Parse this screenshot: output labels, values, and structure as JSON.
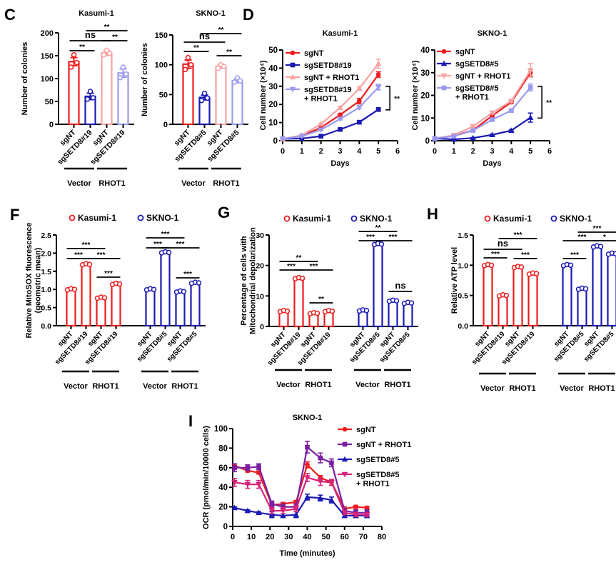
{
  "panel_labels": {
    "C": "C",
    "D": "D",
    "F": "F",
    "G": "G",
    "H": "H",
    "I": "I"
  },
  "colors": {
    "red": "#ee1c1c",
    "blue": "#1a1ab4",
    "pink": "#f7a3a3",
    "lavender": "#9a9af0",
    "purple": "#7b1fa2",
    "magenta": "#d6237a"
  },
  "chart_data": [
    {
      "id": "C1",
      "type": "bar",
      "title": "Kasumi-1",
      "ylabel": "Number of colonies",
      "ylim": [
        0,
        200
      ],
      "yticks": [
        0,
        50,
        100,
        150,
        200
      ],
      "categories": [
        "sgNT",
        "sgSETD8#19",
        "sgNT",
        "sgSETD8#19"
      ],
      "values": [
        137,
        61,
        156,
        112
      ],
      "errors": [
        9,
        7,
        5,
        9
      ],
      "points": [
        [
          152,
          125,
          135
        ],
        [
          72,
          55,
          58
        ],
        [
          162,
          152,
          155
        ],
        [
          125,
          102,
          110
        ]
      ],
      "bar_colors": [
        "red",
        "blue",
        "pink",
        "lavender"
      ],
      "groups": [
        {
          "label": "Vector",
          "span": [
            0,
            1
          ]
        },
        {
          "label": "RHOT1",
          "span": [
            2,
            3
          ]
        }
      ],
      "sig": [
        {
          "a": 0,
          "b": 1,
          "label": "**"
        },
        {
          "a": 0,
          "b": 2,
          "label": "ns"
        },
        {
          "a": 2,
          "b": 3,
          "label": "**"
        },
        {
          "a": 1,
          "b": 3,
          "label": "**"
        }
      ]
    },
    {
      "id": "C2",
      "type": "bar",
      "title": "SKNO-1",
      "ylabel": "Number of colonies",
      "ylim": [
        0,
        150
      ],
      "yticks": [
        0,
        50,
        100,
        150
      ],
      "categories": [
        "sgNT",
        "sgSETD8#5",
        "sgNT",
        "sgSETD8#5"
      ],
      "values": [
        101,
        45,
        97,
        73
      ],
      "errors": [
        7,
        4,
        3,
        3
      ],
      "points": [
        [
          112,
          92,
          100
        ],
        [
          52,
          40,
          44
        ],
        [
          100,
          94,
          97
        ],
        [
          78,
          71,
          73
        ]
      ],
      "bar_colors": [
        "red",
        "blue",
        "pink",
        "lavender"
      ],
      "groups": [
        {
          "label": "Vector",
          "span": [
            0,
            1
          ]
        },
        {
          "label": "RHOT1",
          "span": [
            2,
            3
          ]
        }
      ],
      "sig": [
        {
          "a": 0,
          "b": 1,
          "label": "**"
        },
        {
          "a": 0,
          "b": 2,
          "label": "ns"
        },
        {
          "a": 2,
          "b": 3,
          "label": "**"
        },
        {
          "a": 1,
          "b": 3,
          "label": "**"
        }
      ]
    },
    {
      "id": "D1",
      "type": "line",
      "title": "Kasumi-1",
      "xlabel": "Days",
      "ylabel": "Cell number (×10⁴)",
      "xlim": [
        0,
        6
      ],
      "ylim": [
        0,
        50
      ],
      "xticks": [
        0,
        1,
        2,
        3,
        4,
        5,
        6
      ],
      "yticks": [
        0,
        10,
        20,
        30,
        40,
        50
      ],
      "x": [
        0,
        1,
        2,
        3,
        4,
        5
      ],
      "series": [
        {
          "name": "sgNT",
          "color": "red",
          "marker": "circle",
          "values": [
            1,
            2.8,
            7.2,
            14.3,
            21.8,
            36.5
          ],
          "errors": [
            0.3,
            0.3,
            0.5,
            0.6,
            1.5,
            1.5
          ]
        },
        {
          "name": "sgSETD8#19",
          "color": "blue",
          "marker": "square",
          "values": [
            1,
            1.2,
            2.5,
            6.2,
            10.2,
            17.2
          ],
          "errors": [
            0.2,
            0.2,
            0.3,
            0.4,
            0.6,
            0.6
          ]
        },
        {
          "name": "sgNT + RHOT1",
          "color": "pink",
          "marker": "triangle",
          "values": [
            1,
            3,
            9.2,
            18.2,
            28.8,
            42.5
          ],
          "errors": [
            0.3,
            0.3,
            0.5,
            0.6,
            0.9,
            2.5
          ]
        },
        {
          "name": "sgSETD8#19\n+ RHOT1",
          "color": "lavender",
          "marker": "triangle-down",
          "values": [
            1,
            2.5,
            6,
            12,
            18.3,
            29.5
          ],
          "errors": [
            0.2,
            0.3,
            0.4,
            0.5,
            0.7,
            1.5
          ]
        }
      ],
      "bracket": {
        "from": 17,
        "to": 30,
        "label": "**"
      }
    },
    {
      "id": "D2",
      "type": "line",
      "title": "SKNO-1",
      "xlabel": "Days",
      "ylabel": "Cell number (×10⁴)",
      "xlim": [
        0,
        6
      ],
      "ylim": [
        0,
        40
      ],
      "xticks": [
        0,
        1,
        2,
        3,
        4,
        5,
        6
      ],
      "yticks": [
        0,
        10,
        20,
        30,
        40
      ],
      "x": [
        0,
        1,
        2,
        3,
        4,
        5
      ],
      "series": [
        {
          "name": "sgNT",
          "color": "red",
          "marker": "circle",
          "values": [
            1,
            2.2,
            4.6,
            11,
            17,
            30
          ],
          "errors": [
            0.2,
            0.2,
            0.3,
            0.5,
            0.6,
            1.5
          ]
        },
        {
          "name": "sgSETD8#5",
          "color": "blue",
          "marker": "triangle",
          "values": [
            1,
            0.6,
            1.2,
            2.6,
            4.5,
            10.2
          ],
          "errors": [
            0.2,
            0.2,
            0.2,
            0.3,
            0.4,
            2
          ]
        },
        {
          "name": "sgNT + RHOT1",
          "color": "pink",
          "marker": "triangle-down",
          "values": [
            1,
            2.4,
            6.3,
            12.3,
            17.5,
            31
          ],
          "errors": [
            0.2,
            0.3,
            0.4,
            0.5,
            0.7,
            3
          ]
        },
        {
          "name": "sgSETD8#5\n+ RHOT1",
          "color": "lavender",
          "marker": "square",
          "values": [
            1,
            2,
            4.5,
            9.3,
            13.3,
            23.5
          ],
          "errors": [
            0.2,
            0.2,
            0.3,
            0.4,
            0.6,
            1.5
          ]
        }
      ],
      "bracket": {
        "from": 10,
        "to": 24,
        "label": "**"
      }
    },
    {
      "id": "F",
      "type": "bar",
      "ylabel": "Relative MitoSOX fluorescence\n(geometric mean)",
      "ylim": [
        0,
        2.5
      ],
      "yticks": [
        "0.0",
        "0.5",
        "1.0",
        "1.5",
        "2.0",
        "2.5"
      ],
      "legend": [
        {
          "name": "Kasumi-1",
          "color": "red"
        },
        {
          "name": "SKNO-1",
          "color": "blue"
        }
      ],
      "categories": [
        "sgNT",
        "sgSETD8#19",
        "sgNT",
        "sgSETD8#19",
        "sgNT",
        "sgSETD8#5",
        "sgNT",
        "sgSETD8#5"
      ],
      "values": [
        1.0,
        1.69,
        0.77,
        1.15,
        1.0,
        2.02,
        0.94,
        1.18
      ],
      "bar_colors": [
        "red",
        "red",
        "red",
        "red",
        "blue",
        "blue",
        "blue",
        "blue"
      ],
      "groups": [
        {
          "label": "Vector",
          "span": [
            0,
            1
          ]
        },
        {
          "label": "RHOT1",
          "span": [
            2,
            3
          ]
        },
        {
          "label": "Vector",
          "span": [
            4,
            5
          ]
        },
        {
          "label": "RHOT1",
          "span": [
            6,
            7
          ]
        }
      ],
      "sig": [
        {
          "a": 0,
          "b": 1,
          "label": "***",
          "lvl": 0
        },
        {
          "a": 0,
          "b": 2,
          "label": "***",
          "lvl": 1
        },
        {
          "a": 1,
          "b": 3,
          "label": "***",
          "lvl": 0
        },
        {
          "a": 2,
          "b": 3,
          "label": "***",
          "lvl": -1
        },
        {
          "a": 4,
          "b": 5,
          "label": "***",
          "lvl": 0
        },
        {
          "a": 4,
          "b": 6,
          "label": "***",
          "lvl": 1
        },
        {
          "a": 5,
          "b": 7,
          "label": "***",
          "lvl": 0
        },
        {
          "a": 6,
          "b": 7,
          "label": "***",
          "lvl": -1
        }
      ]
    },
    {
      "id": "G",
      "type": "bar",
      "ylabel": "Percentage of cells with\nMitochondrial depolarization",
      "ylim": [
        0,
        30
      ],
      "yticks": [
        "0",
        "10",
        "20",
        "30"
      ],
      "legend": [
        {
          "name": "Kasumi-1",
          "color": "red"
        },
        {
          "name": "SKNO-1",
          "color": "blue"
        }
      ],
      "categories": [
        "sgNT",
        "sgSETD8#19",
        "sgNT",
        "sgSETD8#19",
        "sgNT",
        "sgSETD8#5",
        "sgNT",
        "sgSETD8#5"
      ],
      "values": [
        5.0,
        15.8,
        4.3,
        5.0,
        5.2,
        27.0,
        8.4,
        7.7
      ],
      "bar_colors": [
        "red",
        "red",
        "red",
        "red",
        "blue",
        "blue",
        "blue",
        "blue"
      ],
      "groups": [
        {
          "label": "Vector",
          "span": [
            0,
            1
          ]
        },
        {
          "label": "RHOT1",
          "span": [
            2,
            3
          ]
        },
        {
          "label": "Vector",
          "span": [
            4,
            5
          ]
        },
        {
          "label": "RHOT1",
          "span": [
            6,
            7
          ]
        }
      ],
      "sig": [
        {
          "a": 0,
          "b": 1,
          "label": "***",
          "lvl": 0
        },
        {
          "a": 0,
          "b": 2,
          "label": "**",
          "lvl": 1
        },
        {
          "a": 1,
          "b": 3,
          "label": "***",
          "lvl": 0
        },
        {
          "a": 2,
          "b": 3,
          "label": "**",
          "lvl": -1
        },
        {
          "a": 4,
          "b": 5,
          "label": "***",
          "lvl": 0
        },
        {
          "a": 4,
          "b": 6,
          "label": "**",
          "lvl": 1
        },
        {
          "a": 5,
          "b": 7,
          "label": "***",
          "lvl": 0
        },
        {
          "a": 6,
          "b": 7,
          "label": "ns",
          "lvl": -1
        }
      ]
    },
    {
      "id": "H",
      "type": "bar",
      "ylabel": "Relative ATP level",
      "ylim": [
        0,
        1.5
      ],
      "yticks": [
        "0.0",
        "0.5",
        "1.0",
        "1.5"
      ],
      "legend": [
        {
          "name": "Kasumi-1",
          "color": "red"
        },
        {
          "name": "SKNO-1",
          "color": "blue"
        }
      ],
      "categories": [
        "sgNT",
        "sgSETD8#19",
        "sgNT",
        "sgSETD8#19",
        "sgNT",
        "sgSETD8#5",
        "sgNT",
        "sgSETD8#5"
      ],
      "values": [
        1.0,
        0.5,
        0.97,
        0.86,
        1.0,
        0.61,
        1.31,
        1.19
      ],
      "bar_colors": [
        "red",
        "red",
        "red",
        "red",
        "blue",
        "blue",
        "blue",
        "blue"
      ],
      "groups": [
        {
          "label": "Vector",
          "span": [
            0,
            1
          ]
        },
        {
          "label": "RHOT1",
          "span": [
            2,
            3
          ]
        },
        {
          "label": "Vector",
          "span": [
            4,
            5
          ]
        },
        {
          "label": "RHOT1",
          "span": [
            6,
            7
          ]
        }
      ],
      "sig": [
        {
          "a": 0,
          "b": 1,
          "label": "***",
          "lvl": 0
        },
        {
          "a": 0,
          "b": 2,
          "label": "ns",
          "lvl": 1
        },
        {
          "a": 1,
          "b": 3,
          "label": "***",
          "lvl": 2
        },
        {
          "a": 2,
          "b": 3,
          "label": "***",
          "lvl": 0
        },
        {
          "a": 4,
          "b": 5,
          "label": "***",
          "lvl": 0
        },
        {
          "a": 4,
          "b": 6,
          "label": "***",
          "lvl": 1
        },
        {
          "a": 5,
          "b": 7,
          "label": "***",
          "lvl": 2
        },
        {
          "a": 6,
          "b": 7,
          "label": "*",
          "lvl": 1
        }
      ]
    },
    {
      "id": "I",
      "type": "line",
      "title": "SKNO-1",
      "xlabel": "Time (minutes)",
      "ylabel": "OCR (pmol/min/10000 cells)",
      "xlim": [
        0,
        80
      ],
      "ylim": [
        0,
        100
      ],
      "xticks": [
        0,
        10,
        20,
        30,
        40,
        50,
        60,
        70,
        80
      ],
      "yticks": [
        0,
        20,
        40,
        60,
        80,
        100
      ],
      "x": [
        1,
        8,
        14,
        21,
        27,
        34,
        40,
        47,
        53,
        60,
        66,
        72
      ],
      "series": [
        {
          "name": "sgNT",
          "color": "red",
          "marker": "circle",
          "values": [
            62,
            57,
            55,
            22,
            23,
            25,
            63,
            50,
            45,
            18,
            20,
            19
          ],
          "errors": [
            2,
            1.5,
            1.5,
            2,
            1.5,
            1.5,
            3,
            2,
            3,
            2,
            1.5,
            1.5
          ]
        },
        {
          "name": "sgNT + RHOT1",
          "color": "purple",
          "marker": "square",
          "values": [
            60,
            60,
            61,
            23,
            20,
            20,
            81,
            70,
            65,
            16,
            14,
            14
          ],
          "errors": [
            4,
            3,
            3,
            3,
            3,
            3,
            6,
            5,
            4,
            2,
            3,
            3
          ]
        },
        {
          "name": "sgSETD8#5",
          "color": "blue",
          "marker": "triangle",
          "values": [
            19,
            16,
            14,
            12,
            11,
            12,
            30,
            29,
            27,
            11,
            11,
            11
          ],
          "errors": [
            1,
            1,
            1,
            3,
            2,
            3,
            3,
            3,
            3,
            2,
            2,
            2
          ]
        },
        {
          "name": "sgSETD8#5\n+ RHOT1",
          "color": "magenta",
          "marker": "triangle-down",
          "values": [
            45,
            43,
            43,
            16,
            16,
            18,
            50,
            46,
            45,
            14,
            12,
            12
          ],
          "errors": [
            4,
            4,
            4,
            3,
            3,
            3,
            4,
            4,
            3,
            2,
            2,
            2
          ]
        }
      ]
    }
  ]
}
